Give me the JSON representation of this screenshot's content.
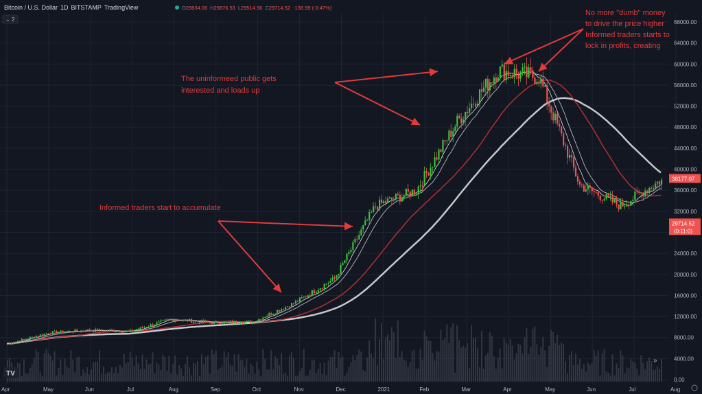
{
  "header": {
    "symbol": "Bitcoin / U.S. Dollar",
    "interval": "1D",
    "exchange": "BITSTAMP",
    "platform": "TradingView",
    "ohlc": [
      {
        "label": "O",
        "value": "29834.06"
      },
      {
        "label": "H",
        "value": "29876.53"
      },
      {
        "label": "L",
        "value": "29514.96"
      },
      {
        "label": "C",
        "value": "29714.52"
      },
      {
        "label": "",
        "value": "-138.99 (-0.47%)"
      }
    ],
    "indicator_toggle": "2"
  },
  "colors": {
    "background": "#131722",
    "grid": "#1f2433",
    "up": "#26a69a",
    "up_bright": "#3fbf3f",
    "down": "#ef5350",
    "annotation": "#e23b3b",
    "ma_long": "#c8c8cc",
    "ma_mid_red": "#b0302e",
    "ma_200w": "#d8343a"
  },
  "chart_data": {
    "type": "candlestick",
    "y_axis_scale": "log",
    "ylim": [
      0,
      68000
    ],
    "y_ticks": [
      "68000.00",
      "64000.00",
      "60000.00",
      "56000.00",
      "52000.00",
      "48000.00",
      "44000.00",
      "40000.00",
      "36000.00",
      "32000.00",
      "28000.00",
      "24000.00",
      "20000.00",
      "16000.00",
      "12000.00",
      "8000.00",
      "4000.00",
      "0.00"
    ],
    "x_ticks": [
      "Apr",
      "May",
      "Jun",
      "Jul",
      "Aug",
      "Sep",
      "Oct",
      "Nov",
      "Dec",
      "2021",
      "Feb",
      "Mar",
      "Apr",
      "May",
      "Jun",
      "Jul",
      "Aug"
    ],
    "price_path": [
      {
        "t": "Apr",
        "close": 6800
      },
      {
        "t": "May",
        "close": 8900
      },
      {
        "t": "Jun",
        "close": 9400
      },
      {
        "t": "Jul",
        "close": 9200
      },
      {
        "t": "Aug",
        "close": 11500
      },
      {
        "t": "Sep",
        "close": 10800
      },
      {
        "t": "Oct",
        "close": 11000
      },
      {
        "t": "Nov",
        "close": 14500
      },
      {
        "t": "Dec",
        "close": 19200
      },
      {
        "t": "2021",
        "close": 33000
      },
      {
        "t": "Feb",
        "close": 36000
      },
      {
        "t": "Mar",
        "close": 49000
      },
      {
        "t": "Apr",
        "close": 58800
      },
      {
        "t": "May",
        "close": 57500
      },
      {
        "t": "Jun",
        "close": 37000
      },
      {
        "t": "Jul",
        "close": 33000
      },
      {
        "t": "Aug",
        "close": 38000
      }
    ],
    "price_labels": [
      {
        "value": "38177.07",
        "color": "#ef5350"
      },
      {
        "value": "29714.52",
        "sub": "(0:11:0)",
        "color": "#ef5350"
      }
    ],
    "annotations": [
      {
        "text": "The uninformeed public gets",
        "line2": "interested and loads up"
      },
      {
        "text": "Informed traders start to accumulate"
      },
      {
        "text": "No more \"dumb\" money",
        "line2": "to drive the price higher",
        "line3": "Informed traders starts to",
        "line4": "lock in profits, creating"
      }
    ]
  }
}
